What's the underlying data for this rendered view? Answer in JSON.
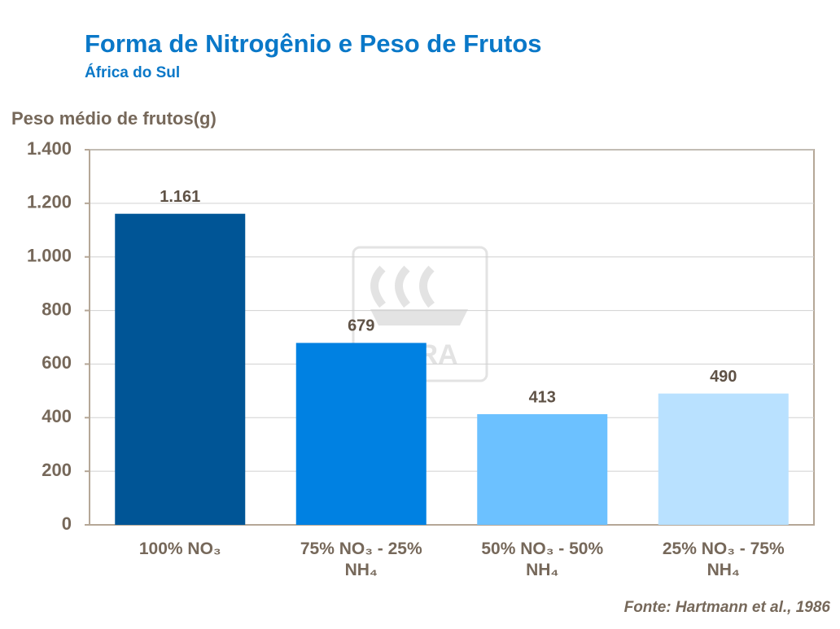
{
  "chart_data": {
    "type": "bar",
    "title": "Forma de Nitrogênio e Peso de Frutos",
    "subtitle": "África do Sul",
    "y_label": "Peso médio de frutos(g)",
    "source": "Fonte: Hartmann et al., 1986",
    "watermark": "YARA",
    "categories": [
      "100% NO₃",
      "75% NO₃ - 25% NH₄",
      "50% NO₃ - 50% NH₄",
      "25% NO₃ - 75% NH₄"
    ],
    "values": [
      1161,
      679,
      413,
      490
    ],
    "value_labels": [
      "1.161",
      "679",
      "413",
      "490"
    ],
    "colors": [
      "#005596",
      "#0081e2",
      "#6cc1ff",
      "#b9e1ff"
    ],
    "ylim": [
      0,
      1400
    ],
    "yticks": [
      0,
      200,
      400,
      600,
      800,
      {
        "value": 1000,
        "label": "1.000"
      },
      {
        "value": 1200,
        "label": "1.200"
      },
      {
        "value": 1400,
        "label": "1.400"
      }
    ],
    "grid": true
  }
}
